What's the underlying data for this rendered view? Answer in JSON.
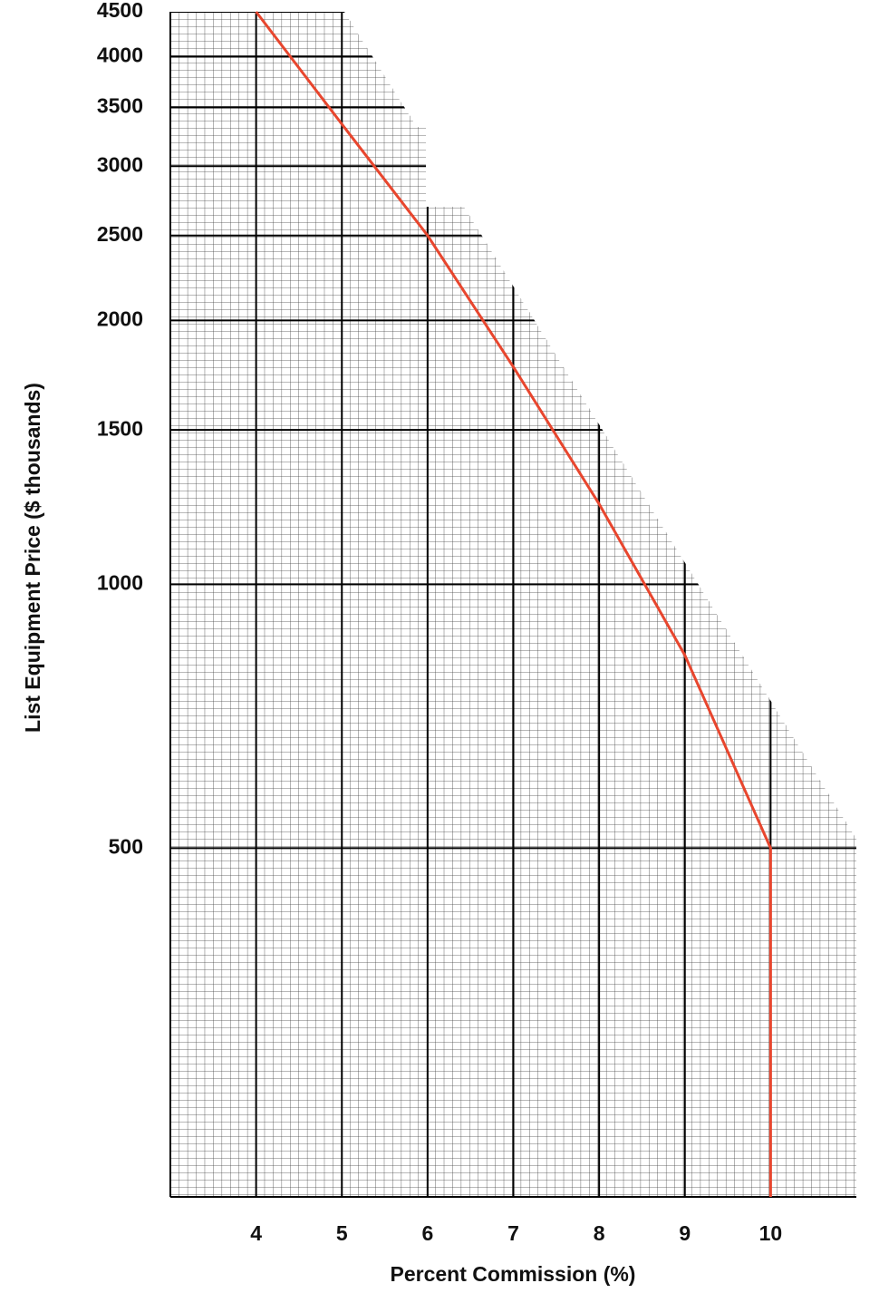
{
  "chart_data": {
    "type": "line",
    "x_label": "Percent Commission (%)",
    "y_label": "List Equipment Price ($ thousands)",
    "xlim": [
      3,
      11
    ],
    "xticks": [
      4,
      5,
      6,
      7,
      8,
      9,
      10
    ],
    "ylim": [
      200,
      4500
    ],
    "yticks": [
      500,
      1000,
      1500,
      2000,
      2500,
      3000,
      3500,
      4000,
      4500
    ],
    "y_scale": "log",
    "grid": true,
    "series": [
      {
        "color": "#e8462e",
        "x": [
          4,
          5,
          6,
          7,
          8,
          9,
          10,
          10
        ],
        "values": [
          4500,
          3350,
          2500,
          1770,
          1235,
          830,
          500,
          200
        ]
      }
    ]
  }
}
